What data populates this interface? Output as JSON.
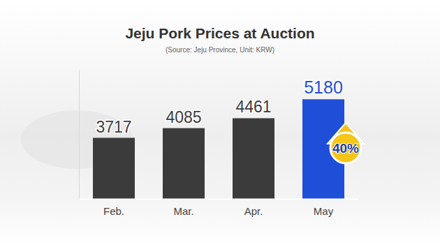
{
  "chart_data": {
    "type": "bar",
    "title": "Jeju Pork Prices at Auction",
    "subtitle": "(Source: Jeju Province, Unit: KRW)",
    "categories": [
      "Feb.",
      "Mar.",
      "Apr.",
      "May"
    ],
    "values": [
      3717,
      4085,
      4461,
      5180
    ],
    "colors": [
      "#3b3b3b",
      "#3b3b3b",
      "#3b3b3b",
      "#1f4fd8"
    ],
    "ylim": [
      1400,
      6300
    ],
    "data_labels": true,
    "tick_labels": "x",
    "annotation": "40%"
  }
}
